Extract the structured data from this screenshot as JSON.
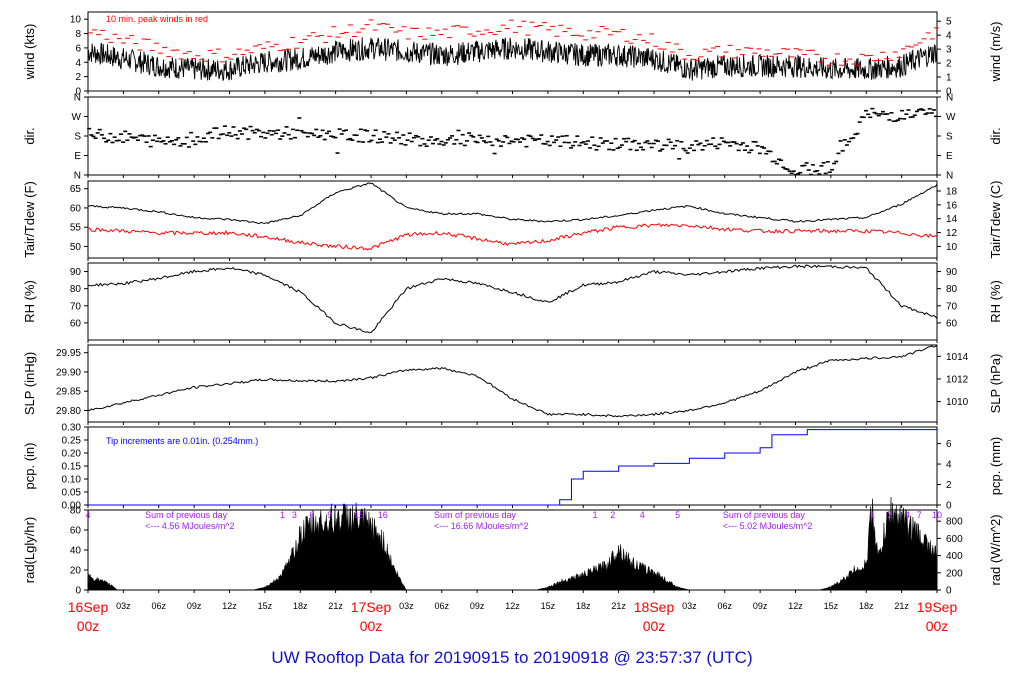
{
  "title": "UW Rooftop Data for 20190915  to  20190918 @ 23:57:37  (UTC)",
  "chart_data": [
    {
      "id": "wind",
      "type": "line",
      "ylabel": "wind (kts)",
      "ylabel_right": "wind (m/s)",
      "ylim": [
        0,
        11
      ],
      "ylim_right": [
        0,
        5.66
      ],
      "yticks": [
        0,
        2,
        4,
        6,
        8,
        10
      ],
      "yticks_right": [
        0,
        1,
        2,
        3,
        4,
        5
      ],
      "annotation": "10 min. peak winds in red",
      "series": [
        {
          "name": "wind",
          "color": "#000000",
          "x": [
            0,
            3,
            6,
            9,
            12,
            15,
            18,
            21,
            24,
            27,
            30,
            33,
            36,
            39,
            42,
            45,
            48,
            51,
            54,
            57,
            60,
            63,
            66,
            69,
            72
          ],
          "values": [
            5.5,
            4.5,
            3.5,
            3,
            3,
            4,
            4.5,
            5.5,
            6,
            5.5,
            5,
            5.5,
            6,
            5.5,
            5,
            5,
            4.5,
            3,
            3.5,
            3.5,
            3.5,
            3,
            3,
            3.5,
            5.5
          ]
        },
        {
          "name": "10 min. peak winds",
          "color": "#ff0000",
          "x": [
            0,
            3,
            6,
            9,
            12,
            15,
            18,
            21,
            24,
            27,
            30,
            33,
            36,
            39,
            42,
            45,
            48,
            51,
            54,
            57,
            60,
            63,
            66,
            69,
            72
          ],
          "values": [
            8.5,
            7,
            6,
            5,
            5,
            6,
            7,
            8,
            9,
            8,
            8,
            8.5,
            9,
            8.5,
            8,
            8,
            7,
            5,
            5.5,
            5.5,
            5,
            4.5,
            4.5,
            5.5,
            8.5
          ]
        }
      ]
    },
    {
      "id": "dir",
      "type": "scatter",
      "ylabel": "dir.",
      "ylabel_right": "dir.",
      "ylim": [
        0,
        360
      ],
      "yticks": [
        0,
        90,
        180,
        270,
        360
      ],
      "yticklabels": [
        "N",
        "E",
        "S",
        "W",
        "N"
      ],
      "series": [
        {
          "name": "direction",
          "color": "#000000",
          "x": [
            0,
            3,
            6,
            9,
            12,
            15,
            18,
            21,
            24,
            27,
            30,
            33,
            36,
            39,
            42,
            45,
            48,
            51,
            54,
            57,
            60,
            63,
            66,
            69,
            72
          ],
          "values": [
            185,
            175,
            155,
            170,
            200,
            190,
            195,
            185,
            180,
            165,
            160,
            165,
            160,
            155,
            150,
            140,
            140,
            130,
            150,
            125,
            20,
            40,
            280,
            275,
            285
          ]
        }
      ]
    },
    {
      "id": "temp",
      "type": "line",
      "ylabel": "Tair/Tdew (F)",
      "ylabel_right": "Tair/Tdew (C)",
      "ylim": [
        47,
        67
      ],
      "ylim_right": [
        8.33,
        19.44
      ],
      "yticks": [
        50,
        55,
        60,
        65
      ],
      "yticks_right": [
        10,
        12,
        14,
        16,
        18
      ],
      "series": [
        {
          "name": "Tair",
          "color": "#000000",
          "x": [
            0,
            3,
            6,
            9,
            12,
            15,
            18,
            21,
            24,
            27,
            30,
            33,
            36,
            39,
            42,
            45,
            48,
            51,
            54,
            57,
            60,
            63,
            66,
            69,
            72
          ],
          "values": [
            60.5,
            60,
            59,
            57.5,
            57,
            56,
            58,
            64,
            66.5,
            60,
            58.5,
            58.5,
            57,
            56.5,
            57,
            58,
            59.5,
            60.5,
            58.5,
            57.5,
            56.5,
            57,
            57.5,
            61,
            66
          ]
        },
        {
          "name": "Tdew",
          "color": "#ff0000",
          "x": [
            0,
            3,
            6,
            9,
            12,
            15,
            18,
            21,
            24,
            27,
            30,
            33,
            36,
            39,
            42,
            45,
            48,
            51,
            54,
            57,
            60,
            63,
            66,
            69,
            72
          ],
          "values": [
            54.5,
            54,
            53.5,
            53.5,
            53.5,
            52.5,
            51,
            50,
            49.5,
            53,
            53.5,
            52,
            50.5,
            51.5,
            53.5,
            55,
            55.5,
            55.5,
            54.5,
            54,
            54,
            54,
            54,
            53.5,
            52.5
          ]
        }
      ]
    },
    {
      "id": "rh",
      "type": "line",
      "ylabel": "RH (%)",
      "ylabel_right": "RH (%)",
      "ylim": [
        50,
        95
      ],
      "yticks": [
        60,
        70,
        80,
        90
      ],
      "yticks_right": [
        60,
        70,
        80,
        90
      ],
      "series": [
        {
          "name": "RH",
          "color": "#000000",
          "x": [
            0,
            3,
            6,
            9,
            12,
            15,
            18,
            21,
            24,
            27,
            30,
            33,
            36,
            39,
            42,
            45,
            48,
            51,
            54,
            57,
            60,
            63,
            66,
            69,
            72
          ],
          "values": [
            82,
            83,
            86,
            90,
            92,
            88,
            78,
            60,
            54,
            80,
            86,
            83,
            78,
            72,
            82,
            84,
            90,
            88,
            90,
            92,
            93,
            93,
            92,
            70,
            63
          ]
        }
      ]
    },
    {
      "id": "slp",
      "type": "line",
      "ylabel": "SLP (inHg)",
      "ylabel_right": "SLP (hPa)",
      "ylim": [
        29.77,
        29.97
      ],
      "ylim_right": [
        1008.2,
        1015.0
      ],
      "yticks": [
        29.8,
        29.85,
        29.9,
        29.95
      ],
      "yticks_right": [
        1010,
        1012,
        1014
      ],
      "series": [
        {
          "name": "SLP",
          "color": "#000000",
          "x": [
            0,
            3,
            6,
            9,
            12,
            15,
            18,
            21,
            24,
            27,
            30,
            33,
            36,
            39,
            42,
            45,
            48,
            51,
            54,
            57,
            60,
            63,
            66,
            69,
            72
          ],
          "values": [
            29.8,
            29.82,
            29.84,
            29.86,
            29.87,
            29.88,
            29.877,
            29.876,
            29.885,
            29.905,
            29.91,
            29.89,
            29.83,
            29.79,
            29.79,
            29.785,
            29.79,
            29.8,
            29.82,
            29.85,
            29.9,
            29.93,
            29.935,
            29.94,
            29.97
          ]
        }
      ]
    },
    {
      "id": "pcp",
      "type": "line",
      "ylabel": "pcp. (in)",
      "ylabel_right": "pcp. (mm)",
      "ylim": [
        0,
        0.3
      ],
      "ylim_right": [
        0,
        7.62
      ],
      "yticks": [
        0,
        0.05,
        0.1,
        0.15,
        0.2,
        0.25,
        0.3
      ],
      "yticks_right": [
        0,
        2,
        4,
        6
      ],
      "annotation": "Tip increments are 0.01in. (0.254mm.)",
      "series": [
        {
          "name": "precipitation",
          "color": "#0000ff",
          "x": [
            0,
            39,
            40,
            41,
            42,
            45,
            48,
            51,
            54,
            57,
            58,
            61,
            72
          ],
          "values": [
            0,
            0,
            0.02,
            0.1,
            0.13,
            0.15,
            0.16,
            0.18,
            0.2,
            0.22,
            0.27,
            0.29,
            0.29
          ]
        }
      ]
    },
    {
      "id": "rad",
      "type": "area",
      "ylabel": "rad(Lgly/hr)",
      "ylabel_right": "rad (W/m^2)",
      "ylim": [
        0,
        80
      ],
      "ylim_right": [
        0,
        930
      ],
      "yticks": [
        0,
        20,
        40,
        60,
        80
      ],
      "yticks_right": [
        0,
        200,
        400,
        600,
        800
      ],
      "annotations": [
        {
          "x": 4.5,
          "text": "Sum of previous day"
        },
        {
          "x": 4.5,
          "text": "<--- 4.56 MJoules/m^2"
        },
        {
          "x": 29,
          "text": "Sum of previous day"
        },
        {
          "x": 29,
          "text": "<--- 16.66 MJoules/m^2"
        },
        {
          "x": 53.5,
          "text": "Sum of previous day"
        },
        {
          "x": 53.5,
          "text": "<--- 5.02 MJoules/m^2"
        }
      ],
      "hour_markers": [
        {
          "x": 0,
          "text": "4"
        },
        {
          "x": 16.5,
          "text": "1"
        },
        {
          "x": 17.5,
          "text": "3"
        },
        {
          "x": 19,
          "text": "6"
        },
        {
          "x": 20.5,
          "text": "9"
        },
        {
          "x": 23,
          "text": "15"
        },
        {
          "x": 25,
          "text": "16"
        },
        {
          "x": 43,
          "text": "1"
        },
        {
          "x": 44.5,
          "text": "2"
        },
        {
          "x": 47,
          "text": "4"
        },
        {
          "x": 50,
          "text": "5"
        },
        {
          "x": 66.5,
          "text": "1"
        },
        {
          "x": 68,
          "text": "2"
        },
        {
          "x": 69.5,
          "text": "4"
        },
        {
          "x": 70.5,
          "text": "7"
        },
        {
          "x": 72,
          "text": "10"
        }
      ],
      "series": [
        {
          "name": "radiation",
          "color": "#000000",
          "x": [
            0,
            2,
            2.5,
            14,
            15,
            16,
            17,
            18,
            19,
            20,
            21,
            22,
            23,
            24,
            25,
            26,
            27,
            38,
            39,
            40,
            41,
            42,
            43,
            44,
            45,
            46,
            47,
            48,
            49,
            50,
            51,
            62,
            63,
            64,
            65,
            66,
            66.5,
            67,
            68,
            69,
            70,
            71,
            72
          ],
          "values": [
            14,
            5,
            0,
            0,
            3,
            10,
            25,
            55,
            65,
            68,
            70,
            72,
            70,
            62,
            50,
            20,
            0,
            0,
            3,
            8,
            12,
            15,
            20,
            25,
            42,
            28,
            22,
            18,
            10,
            3,
            0,
            0,
            3,
            10,
            20,
            25,
            85,
            30,
            78,
            70,
            60,
            48,
            35
          ]
        }
      ]
    }
  ],
  "x_axis": {
    "range_hours": [
      0,
      72
    ],
    "tick_labels": [
      {
        "x": 3,
        "text": "03z"
      },
      {
        "x": 6,
        "text": "06z"
      },
      {
        "x": 9,
        "text": "09z"
      },
      {
        "x": 12,
        "text": "12z"
      },
      {
        "x": 15,
        "text": "15z"
      },
      {
        "x": 18,
        "text": "18z"
      },
      {
        "x": 21,
        "text": "21z"
      },
      {
        "x": 27,
        "text": "03z"
      },
      {
        "x": 30,
        "text": "06z"
      },
      {
        "x": 33,
        "text": "09z"
      },
      {
        "x": 36,
        "text": "12z"
      },
      {
        "x": 39,
        "text": "15z"
      },
      {
        "x": 42,
        "text": "18z"
      },
      {
        "x": 45,
        "text": "21z"
      },
      {
        "x": 51,
        "text": "03z"
      },
      {
        "x": 54,
        "text": "06z"
      },
      {
        "x": 57,
        "text": "09z"
      },
      {
        "x": 60,
        "text": "12z"
      },
      {
        "x": 63,
        "text": "15z"
      },
      {
        "x": 66,
        "text": "18z"
      },
      {
        "x": 69,
        "text": "21z"
      }
    ],
    "day_labels": [
      {
        "x": 0,
        "date": "16Sep",
        "time": "00z"
      },
      {
        "x": 24,
        "date": "17Sep",
        "time": "00z"
      },
      {
        "x": 48,
        "date": "18Sep",
        "time": "00z"
      },
      {
        "x": 72,
        "date": "19Sep",
        "time": "00z"
      }
    ]
  },
  "colors": {
    "axis": "#000000",
    "tair": "#000000",
    "tdew": "#ff0000",
    "peak_wind": "#ff0000",
    "precip": "#0000ff",
    "annotation_purple": "#a020f0",
    "day_label": "#ff0000",
    "title": "#1111cc"
  }
}
